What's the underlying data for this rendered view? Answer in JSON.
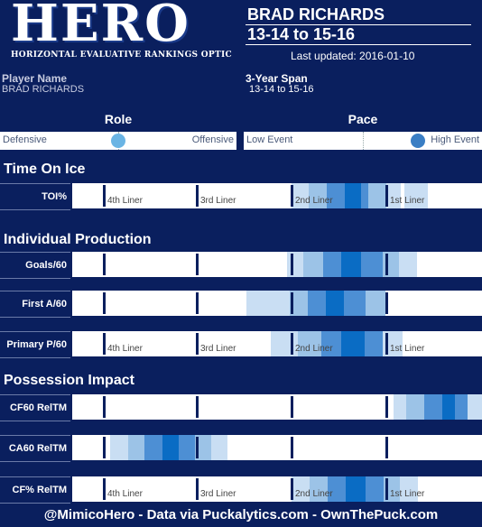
{
  "header": {
    "logo_text": "HERO",
    "logo_subtitle": "HORIZONTAL EVALUATIVE RANKINGS OPTIC",
    "player": "BRAD RICHARDS",
    "span": "13-14 to 15-16",
    "last_updated": "Last updated: 2016-01-10"
  },
  "info": {
    "player_name_label": "Player Name",
    "player_name_value": "BRAD RICHARDS",
    "span_label": "3-Year Span",
    "span_value": "13-14 to 15-16"
  },
  "role": {
    "title": "Role",
    "left": "Defensive",
    "right": "Offensive",
    "position": 0.5,
    "dot_color": "#6ab4e4"
  },
  "pace": {
    "title": "Pace",
    "left": "Low Event",
    "right": "High Event",
    "position": 0.73,
    "dot_color": "#3a7ec4"
  },
  "colors": {
    "background": "#0a1f5e",
    "shade_light": "#c9def3",
    "shade_mid": "#9cc3e7",
    "shade_dark": "#4d8fd4",
    "shade_darkest": "#0a6cc4"
  },
  "liner_labels": [
    "4th Liner",
    "3rd Liner",
    "2nd Liner",
    "1st Liner"
  ],
  "sections": [
    {
      "title": "Time On Ice",
      "rows": [
        {
          "label": "TOI%",
          "show_tiers": true
        }
      ]
    },
    {
      "title": "Individual Production",
      "rows": [
        {
          "label": "Goals/60",
          "show_tiers": false
        },
        {
          "label": "First A/60",
          "show_tiers": false
        },
        {
          "label": "Primary P/60",
          "show_tiers": true
        }
      ]
    },
    {
      "title": "Possession Impact",
      "rows": [
        {
          "label": "CF60 RelTM",
          "show_tiers": false
        },
        {
          "label": "CA60 RelTM",
          "show_tiers": false
        },
        {
          "label": "CF% RelTM",
          "show_tiers": true
        }
      ]
    }
  ],
  "footer": "@MimicoHero - Data via Puckalytics.com - OwnThePuck.com"
}
